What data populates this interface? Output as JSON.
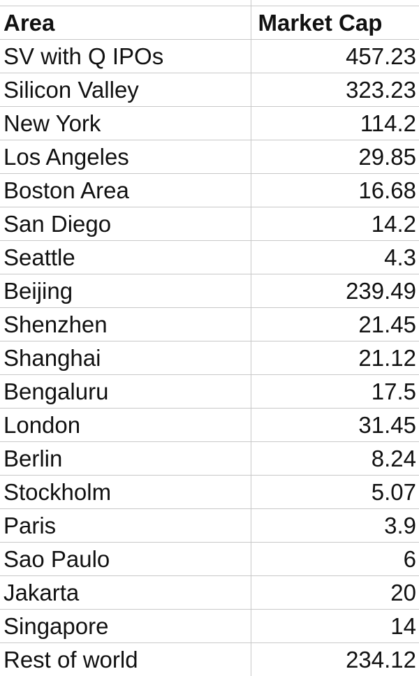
{
  "table": {
    "headers": {
      "area": "Area",
      "market_cap": "Market Cap"
    },
    "rows": [
      {
        "area": "SV with Q IPOs",
        "market_cap": "457.23"
      },
      {
        "area": "Silicon Valley",
        "market_cap": "323.23"
      },
      {
        "area": "New York",
        "market_cap": "114.2"
      },
      {
        "area": "Los Angeles",
        "market_cap": "29.85"
      },
      {
        "area": "Boston Area",
        "market_cap": "16.68"
      },
      {
        "area": "San Diego",
        "market_cap": "14.2"
      },
      {
        "area": "Seattle",
        "market_cap": "4.3"
      },
      {
        "area": "Beijing",
        "market_cap": "239.49"
      },
      {
        "area": "Shenzhen",
        "market_cap": "21.45"
      },
      {
        "area": "Shanghai",
        "market_cap": "21.12"
      },
      {
        "area": "Bengaluru",
        "market_cap": "17.5"
      },
      {
        "area": "London",
        "market_cap": "31.45"
      },
      {
        "area": "Berlin",
        "market_cap": "8.24"
      },
      {
        "area": "Stockholm",
        "market_cap": "5.07"
      },
      {
        "area": "Paris",
        "market_cap": "3.9"
      },
      {
        "area": "Sao Paulo",
        "market_cap": "6"
      },
      {
        "area": "Jakarta",
        "market_cap": "20"
      },
      {
        "area": "Singapore",
        "market_cap": "14"
      },
      {
        "area": "Rest of world",
        "market_cap": "234.12"
      }
    ]
  }
}
